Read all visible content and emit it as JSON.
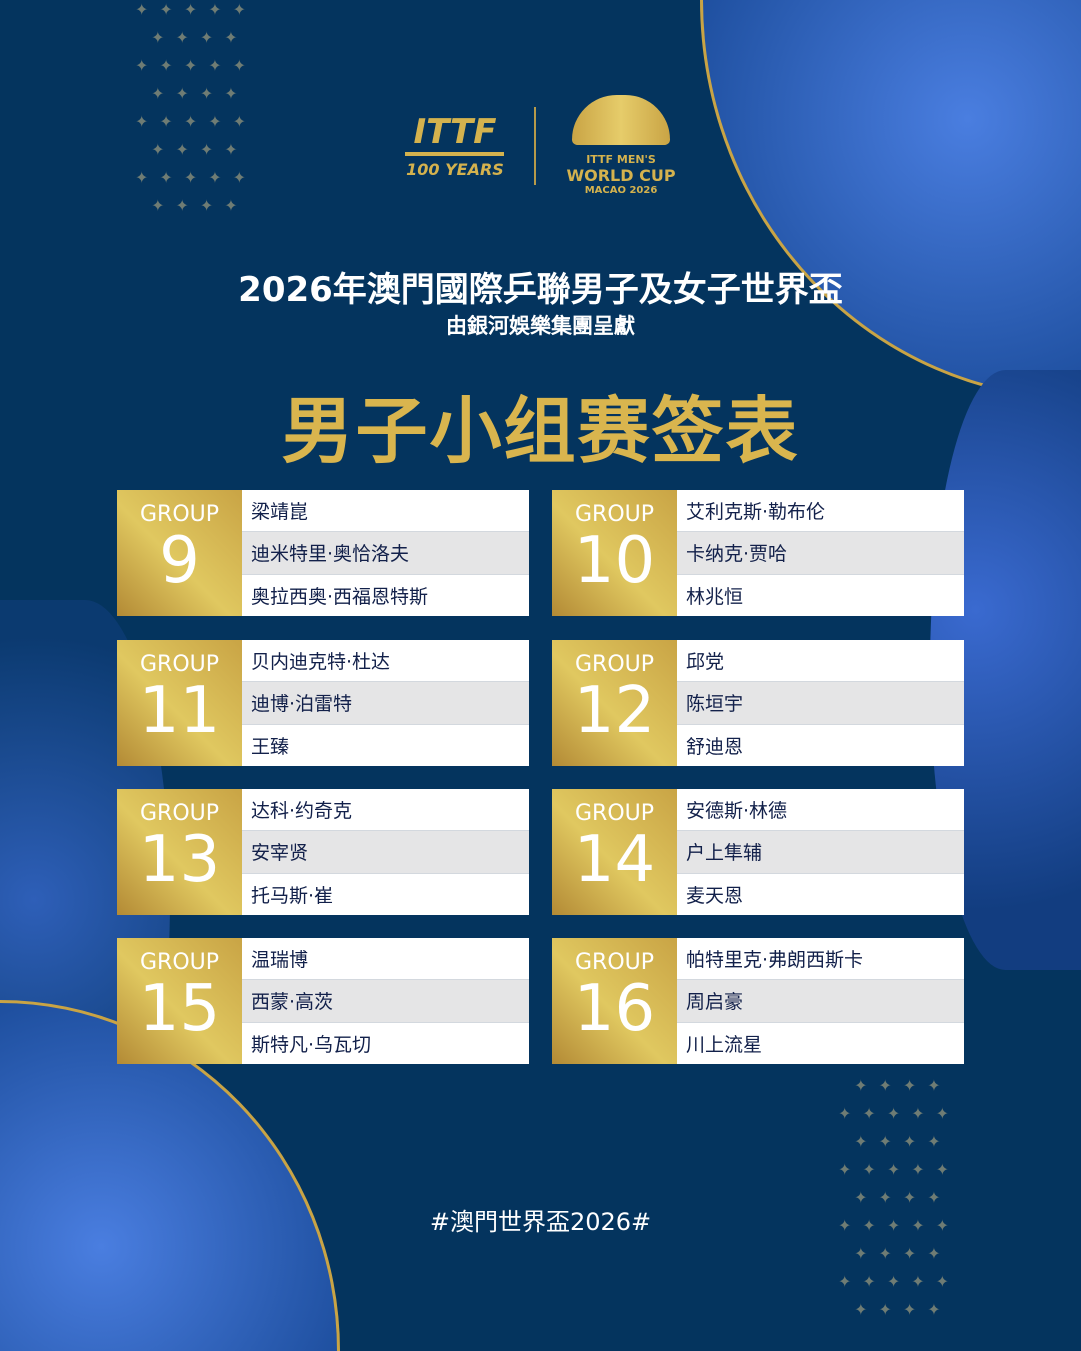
{
  "logos": {
    "ittf": "ITTF",
    "ittf_years": "100 YEARS",
    "event_line1": "ITTF MEN'S",
    "event_line2": "WORLD CUP",
    "event_line3": "MACAO 2026"
  },
  "title": "2026年澳門國際乒聯男子及女子世界盃",
  "subtitle": "由銀河娛樂集團呈獻",
  "heading": "男子小组赛签表",
  "group_label": "GROUP",
  "groups": [
    {
      "number": "9",
      "players": [
        "梁靖崑",
        "迪米特里·奥恰洛夫",
        "奥拉西奥·西福恩特斯"
      ]
    },
    {
      "number": "10",
      "players": [
        "艾利克斯·勒布伦",
        "卡纳克·贾哈",
        "林兆恒"
      ]
    },
    {
      "number": "11",
      "players": [
        "贝内迪克特·杜达",
        "迪博·泊雷特",
        "王臻"
      ]
    },
    {
      "number": "12",
      "players": [
        "邱党",
        "陈垣宇",
        "舒迪恩"
      ]
    },
    {
      "number": "13",
      "players": [
        "达科·约奇克",
        "安宰贤",
        "托马斯·崔"
      ]
    },
    {
      "number": "14",
      "players": [
        "安德斯·林德",
        "户上隼辅",
        "麦天恩"
      ]
    },
    {
      "number": "15",
      "players": [
        "温瑞博",
        "西蒙·高茨",
        "斯特凡·乌瓦切"
      ]
    },
    {
      "number": "16",
      "players": [
        "帕特里克·弗朗西斯卡",
        "周启豪",
        "川上流星"
      ]
    }
  ],
  "hashtag": "#澳門世界盃2026#",
  "colors": {
    "background": "#04345e",
    "gold": "#d9b54e",
    "text": "#12204a"
  }
}
